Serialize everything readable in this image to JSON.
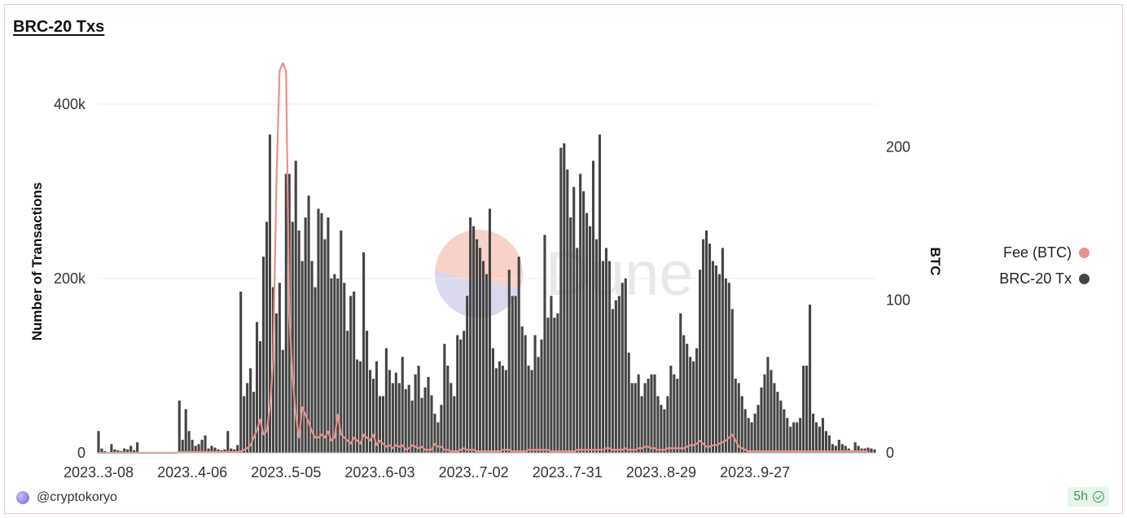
{
  "header": {
    "title": "BRC-20 Txs"
  },
  "legend": {
    "items": [
      {
        "label": "Fee (BTC)",
        "color": "#e8908b"
      },
      {
        "label": "BRC-20 Tx",
        "color": "#444444"
      }
    ]
  },
  "footer": {
    "user": "@cryptokoryo",
    "age": "5h"
  },
  "chart_data": {
    "type": "bar",
    "watermark": "Dune",
    "ylabel": "Number of Transactions",
    "y2label": "BTC",
    "ylim": [
      0,
      440000
    ],
    "y2lim": [
      0,
      251
    ],
    "yticks": [
      {
        "value": 0,
        "label": "0"
      },
      {
        "value": 200000,
        "label": "200k"
      },
      {
        "value": 400000,
        "label": "400k"
      }
    ],
    "y2ticks": [
      {
        "value": 0,
        "label": "0"
      },
      {
        "value": 100,
        "label": "100"
      },
      {
        "value": 200,
        "label": "200"
      }
    ],
    "xticks": [
      {
        "index": 0,
        "label": "2023..3-08"
      },
      {
        "index": 29,
        "label": "2023..4-06"
      },
      {
        "index": 58,
        "label": "2023..5-05"
      },
      {
        "index": 87,
        "label": "2023..6-03"
      },
      {
        "index": 116,
        "label": "2023..7-02"
      },
      {
        "index": 145,
        "label": "2023..7-31"
      },
      {
        "index": 174,
        "label": "2023..8-29"
      },
      {
        "index": 203,
        "label": "2023..9-27"
      }
    ],
    "series": [
      {
        "name": "BRC-20 Tx",
        "kind": "bar",
        "axis": "left",
        "values": [
          25000,
          5000,
          2000,
          1000,
          10000,
          4000,
          3000,
          2000,
          5000,
          4000,
          8000,
          3000,
          12000,
          0,
          0,
          0,
          0,
          0,
          0,
          0,
          0,
          0,
          0,
          0,
          0,
          60000,
          15000,
          50000,
          25000,
          15000,
          8000,
          10000,
          15000,
          20000,
          5000,
          8000,
          6000,
          4000,
          3000,
          4000,
          25000,
          5000,
          4000,
          9000,
          185000,
          65000,
          80000,
          97000,
          70000,
          150000,
          128000,
          225000,
          265000,
          365000,
          190000,
          160000,
          195000,
          118000,
          320000,
          320000,
          265000,
          335000,
          255000,
          220000,
          270000,
          295000,
          220000,
          190000,
          280000,
          275000,
          245000,
          270000,
          200000,
          205000,
          200000,
          255000,
          195000,
          140000,
          180000,
          185000,
          107000,
          105000,
          230000,
          140000,
          95000,
          85000,
          105000,
          65000,
          65000,
          120000,
          95000,
          80000,
          92000,
          80000,
          110000,
          73000,
          78000,
          60000,
          90000,
          100000,
          63000,
          75000,
          87000,
          66000,
          45000,
          35000,
          55000,
          125000,
          100000,
          80000,
          65000,
          135000,
          130000,
          140000,
          180000,
          270000,
          260000,
          245000,
          235000,
          220000,
          205000,
          280000,
          120000,
          97000,
          105000,
          100000,
          95000,
          210000,
          180000,
          180000,
          225000,
          145000,
          135000,
          100000,
          95000,
          135000,
          110000,
          130000,
          250000,
          155000,
          180000,
          155000,
          160000,
          350000,
          355000,
          325000,
          270000,
          305000,
          235000,
          320000,
          300000,
          275000,
          260000,
          335000,
          245000,
          365000,
          220000,
          235000,
          220000,
          165000,
          175000,
          180000,
          195000,
          200000,
          115000,
          80000,
          80000,
          90000,
          65000,
          80000,
          85000,
          90000,
          90000,
          65000,
          55000,
          50000,
          65000,
          100000,
          90000,
          85000,
          160000,
          135000,
          125000,
          110000,
          105000,
          120000,
          210000,
          245000,
          255000,
          240000,
          220000,
          215000,
          205000,
          235000,
          200000,
          195000,
          165000,
          85000,
          80000,
          65000,
          50000,
          40000,
          35000,
          45000,
          55000,
          75000,
          90000,
          110000,
          95000,
          80000,
          70000,
          60000,
          50000,
          40000,
          30000,
          35000,
          35000,
          40000,
          100000,
          100000,
          170000,
          45000,
          35000,
          30000,
          40000,
          25000,
          20000,
          10000,
          8000,
          15000,
          10000,
          8000,
          5000,
          3000,
          12000,
          8000,
          5000,
          5000,
          6000,
          5000,
          4000
        ]
      },
      {
        "name": "Fee (BTC)",
        "kind": "line",
        "axis": "right",
        "values": [
          0,
          0,
          0,
          0,
          0,
          0,
          0,
          0,
          0,
          0,
          0,
          0,
          0,
          0,
          0,
          0,
          0,
          0,
          0,
          0,
          0,
          0,
          0,
          0,
          0,
          0.5,
          0.5,
          0.5,
          0.5,
          0.5,
          0.5,
          0.5,
          0.5,
          0.5,
          0.5,
          0.5,
          0.5,
          0.5,
          0.5,
          0.5,
          0.5,
          0.5,
          0.5,
          0.5,
          1,
          2,
          3,
          5,
          10,
          15,
          22,
          12,
          14,
          30,
          60,
          175,
          250,
          255,
          250,
          90,
          50,
          25,
          10,
          30,
          25,
          20,
          14,
          10,
          10,
          12,
          10,
          14,
          8,
          10,
          25,
          12,
          10,
          8,
          6,
          10,
          8,
          6,
          12,
          10,
          8,
          12,
          5,
          8,
          6,
          4,
          5,
          3,
          5,
          4,
          5,
          2,
          3,
          5,
          4,
          3,
          4,
          2,
          2,
          2,
          6,
          4,
          4,
          2,
          2,
          1,
          1,
          1,
          2,
          3,
          2,
          2,
          2,
          1,
          1,
          1,
          1,
          1,
          1,
          1,
          1,
          2,
          2,
          2,
          1,
          1,
          1,
          1,
          1,
          2,
          2,
          2,
          2,
          2,
          2,
          2,
          1,
          1,
          1,
          1,
          1,
          1,
          1,
          1,
          2,
          2,
          2,
          2,
          2,
          2,
          2,
          2,
          2,
          3,
          3,
          2,
          2,
          2,
          2,
          3,
          2,
          2,
          2,
          3,
          3,
          4,
          4,
          3,
          3,
          2,
          2,
          2,
          3,
          3,
          3,
          3,
          3,
          3,
          4,
          5,
          5,
          6,
          8,
          6,
          4,
          4,
          5,
          5,
          6,
          7,
          8,
          10,
          12,
          8,
          4,
          3,
          2,
          1,
          1,
          1,
          1,
          1,
          1,
          1,
          1,
          1,
          1,
          1,
          1,
          1,
          1,
          1,
          1,
          1,
          1,
          1,
          1,
          1,
          1,
          1,
          1,
          1,
          1,
          1,
          1,
          1,
          1,
          1,
          1,
          1,
          1,
          1,
          1,
          1,
          1
        ]
      }
    ]
  }
}
